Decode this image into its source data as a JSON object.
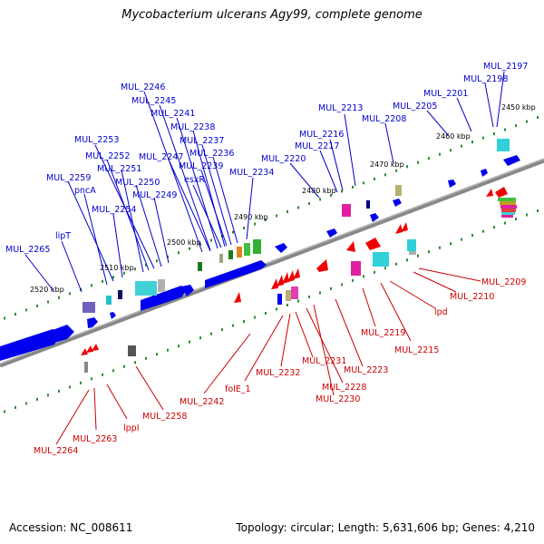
{
  "title": "Mycobacterium ulcerans Agy99, complete genome",
  "footer": {
    "accession": "Accession: NC_008611",
    "summary": "Topology: circular; Length: 5,631,606 bp; Genes: 4,210"
  },
  "colors": {
    "forward_gene": "#0000ee",
    "reverse_gene": "#ee0000",
    "forward_label": "#0000cc",
    "reverse_label": "#cc0000",
    "backbone": "#888888",
    "tick": "#2e8b2e"
  },
  "kbp_labels": [
    "2450 kbp",
    "2460 kbp",
    "2470 kbp",
    "2480 kbp",
    "2490 kbp",
    "2500 kbp",
    "2510 kbp",
    "2520 kbp"
  ],
  "forward_labels": [
    "MUL_2197",
    "MUL_2198",
    "MUL_2201",
    "MUL_2205",
    "MUL_2208",
    "MUL_2213",
    "MUL_2216",
    "MUL_2217",
    "MUL_2220",
    "MUL_2234",
    "MUL_2246",
    "MUL_2245",
    "MUL_2241",
    "MUL_2238",
    "MUL_2237",
    "MUL_2236",
    "MUL_2247",
    "MUL_2239",
    "esxR",
    "MUL_2253",
    "MUL_2252",
    "MUL_2251",
    "MUL_2250",
    "MUL_2249",
    "MUL_2259",
    "pncA",
    "MUL_2254",
    "lipT",
    "MUL_2265"
  ],
  "reverse_labels": [
    "MUL_2209",
    "MUL_2210",
    "lpd",
    "MUL_2215",
    "MUL_2219",
    "MUL_2223",
    "MUL_2228",
    "MUL_2230",
    "MUL_2231",
    "MUL_2232",
    "folE_1",
    "MUL_2242",
    "MUL_2258",
    "lppI",
    "MUL_2263",
    "MUL_2264"
  ]
}
